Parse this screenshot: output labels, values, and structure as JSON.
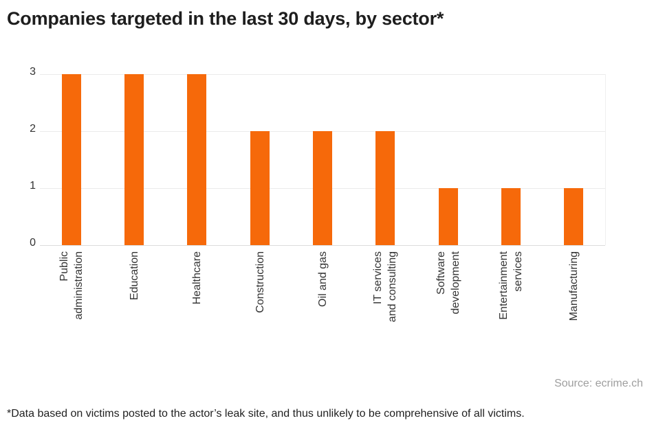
{
  "chart_data": {
    "type": "bar",
    "title": "Companies targeted in the last 30 days, by sector*",
    "categories": [
      "Public administration",
      "Education",
      "Healthcare",
      "Construction",
      "Oil and gas",
      "IT services and consulting",
      "Software development",
      "Entertainment services",
      "Manufacturing"
    ],
    "category_lines": [
      [
        "Public",
        "administration"
      ],
      [
        "Education"
      ],
      [
        "Healthcare"
      ],
      [
        "Construction"
      ],
      [
        "Oil and gas"
      ],
      [
        "IT services",
        "and consulting"
      ],
      [
        "Software",
        "development"
      ],
      [
        "Entertainment",
        "services"
      ],
      [
        "Manufacturing"
      ]
    ],
    "values": [
      3,
      3,
      3,
      2,
      2,
      2,
      1,
      1,
      1
    ],
    "xlabel": "",
    "ylabel": "",
    "ylim": [
      0,
      3
    ],
    "yticks": [
      0,
      1,
      2,
      3
    ],
    "grid": true,
    "bar_color": "#f6690a",
    "colors": {
      "bar": "#f6690a",
      "gridline": "#eaeaea",
      "baseline": "#dcdcdc",
      "tick_label": "#333333",
      "title": "#1e1e1e",
      "source": "#9e9e9e",
      "footnote": "#1f1f1f"
    },
    "source": "Source: ecrime.ch",
    "footnote": "*Data based on victims posted to the actor’s leak site, and thus unlikely to be comprehensive of all victims."
  }
}
